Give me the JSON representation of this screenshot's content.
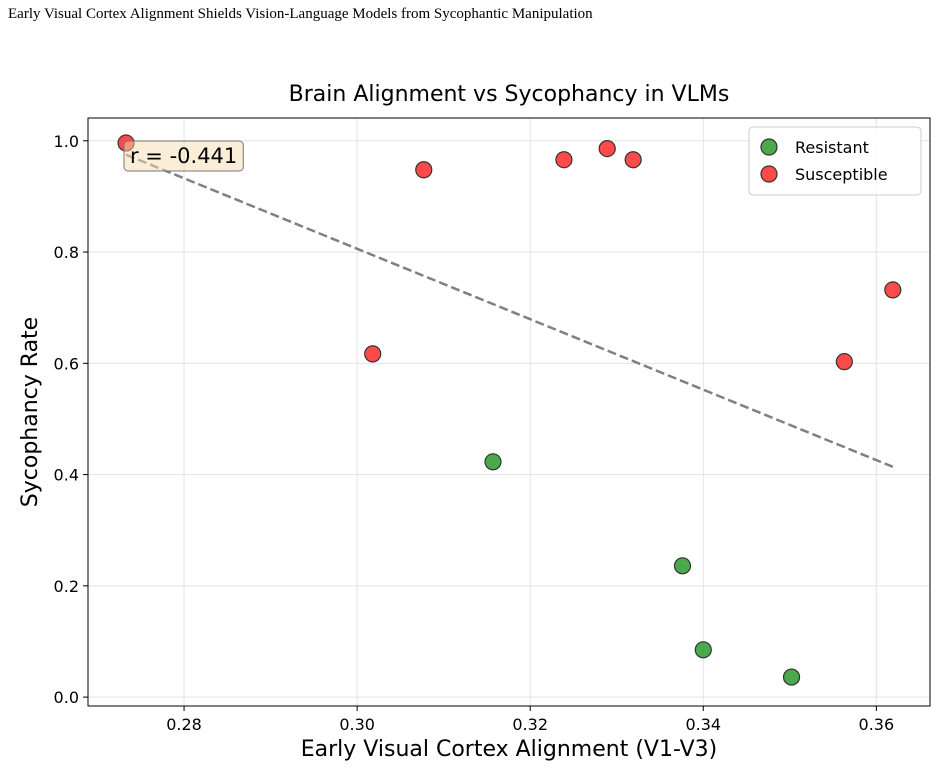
{
  "running_header": "Early Visual Cortex Alignment Shields Vision-Language Models from Sycophantic Manipulation",
  "chart_data": {
    "type": "scatter",
    "title": "Brain Alignment vs Sycophancy in VLMs",
    "x_label": "Early Visual Cortex Alignment (V1-V3)",
    "y_label": "Sycophancy Rate",
    "xlim": [
      0.2689,
      0.3662
    ],
    "ylim": [
      -0.016,
      1.041
    ],
    "xticks": [
      0.28,
      {
        "value": 0.3,
        "label": "0.30"
      },
      0.32,
      0.34,
      0.36
    ],
    "yticks": [
      {
        "value": 0,
        "label": "0.0"
      },
      0.2,
      0.4,
      0.6,
      0.8,
      {
        "value": 1,
        "label": "1.0"
      }
    ],
    "grid": true,
    "legend": "upper right",
    "series": [
      {
        "name": "Resistant",
        "color": "#2a9a2a",
        "x": [
          0.3157,
          0.3376,
          0.34,
          0.3502
        ],
        "values": [
          0.423,
          0.236,
          0.085,
          0.036
        ]
      },
      {
        "name": "Susceptible",
        "color": "#ff2a2a",
        "x": [
          0.2733,
          0.3077,
          0.3018,
          0.3239,
          0.3289,
          0.3319,
          0.3563,
          0.3619
        ],
        "values": [
          0.996,
          0.948,
          0.617,
          0.966,
          0.986,
          0.966,
          0.603,
          0.732
        ]
      }
    ],
    "trend_line": {
      "color": "#808080",
      "x": [
        0.2733,
        0.3619
      ],
      "y": [
        0.975,
        0.414
      ]
    },
    "annotation": "r = -0.441"
  }
}
